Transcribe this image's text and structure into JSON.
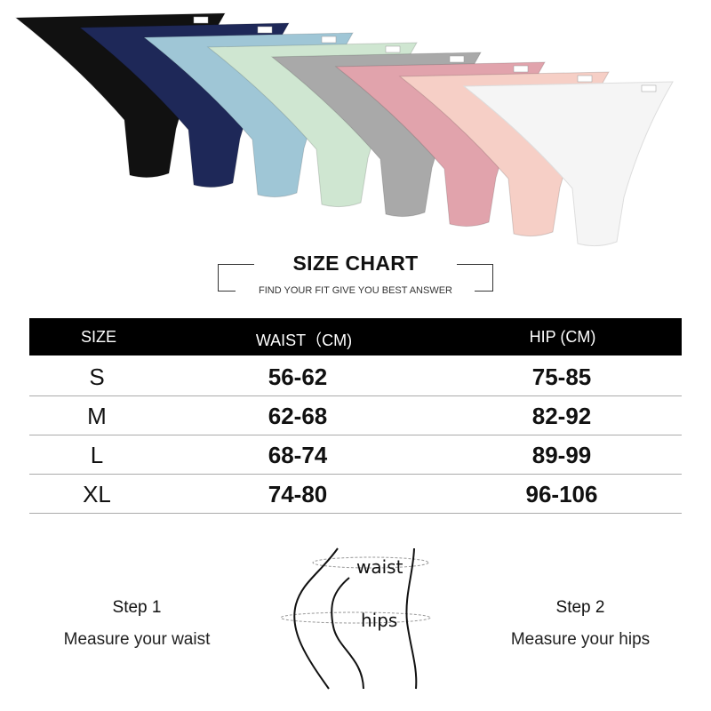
{
  "products": {
    "colors": [
      "#111111",
      "#1e2858",
      "#9fc6d6",
      "#cfe6d1",
      "#a9a9a9",
      "#e1a3ac",
      "#f6cfc6",
      "#f5f5f5"
    ]
  },
  "header": {
    "title": "SIZE CHART",
    "subtitle": "FIND YOUR FIT GIVE YOU BEST ANSWER"
  },
  "table": {
    "columns": [
      "SIZE",
      "WAIST（CM)",
      "HIP (CM)"
    ],
    "rows": [
      {
        "size": "S",
        "waist": "56-62",
        "hip": "75-85"
      },
      {
        "size": "M",
        "waist": "62-68",
        "hip": "82-92"
      },
      {
        "size": "L",
        "waist": "68-74",
        "hip": "89-99"
      },
      {
        "size": "XL",
        "waist": "74-80",
        "hip": "96-106"
      }
    ]
  },
  "steps": [
    {
      "label": "Step 1",
      "desc": "Measure your waist"
    },
    {
      "label": "Step 2",
      "desc": "Measure your hips"
    }
  ],
  "diagram": {
    "waist": "waist",
    "hips": "hips"
  }
}
